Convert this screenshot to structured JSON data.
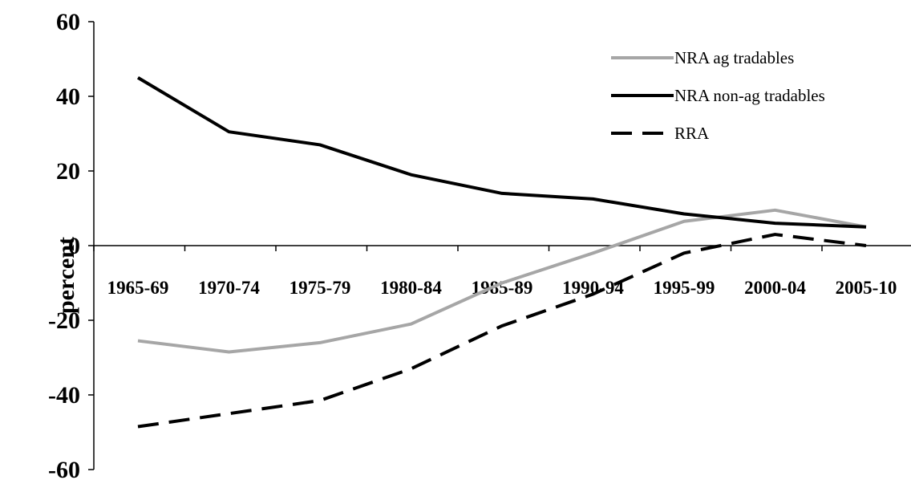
{
  "chart_data": {
    "type": "line",
    "title": "",
    "xlabel": "",
    "ylabel": "percent",
    "ylim": [
      -60,
      60
    ],
    "yticks": [
      60,
      40,
      20,
      0,
      -20,
      -40,
      -60
    ],
    "categories": [
      "1965-69",
      "1970-74",
      "1975-79",
      "1980-84",
      "1985-89",
      "1990-94",
      "1995-99",
      "2000-04",
      "2005-10"
    ],
    "grid": false,
    "legend_position": "top-right",
    "series": [
      {
        "name": "NRA ag tradables",
        "color": "#a6a6a6",
        "dash": "solid",
        "values": [
          -25.5,
          -28.5,
          -26,
          -21,
          -10,
          -2,
          6.5,
          9.5,
          5
        ]
      },
      {
        "name": "NRA non-ag tradables",
        "color": "#000000",
        "dash": "solid",
        "values": [
          45,
          30.5,
          27,
          19,
          14,
          12.5,
          8.5,
          6,
          5
        ]
      },
      {
        "name": "RRA",
        "color": "#000000",
        "dash": "dashed",
        "values": [
          -48.5,
          -45,
          -41.5,
          -33,
          -21.5,
          -13,
          -2,
          3,
          0
        ]
      }
    ]
  }
}
